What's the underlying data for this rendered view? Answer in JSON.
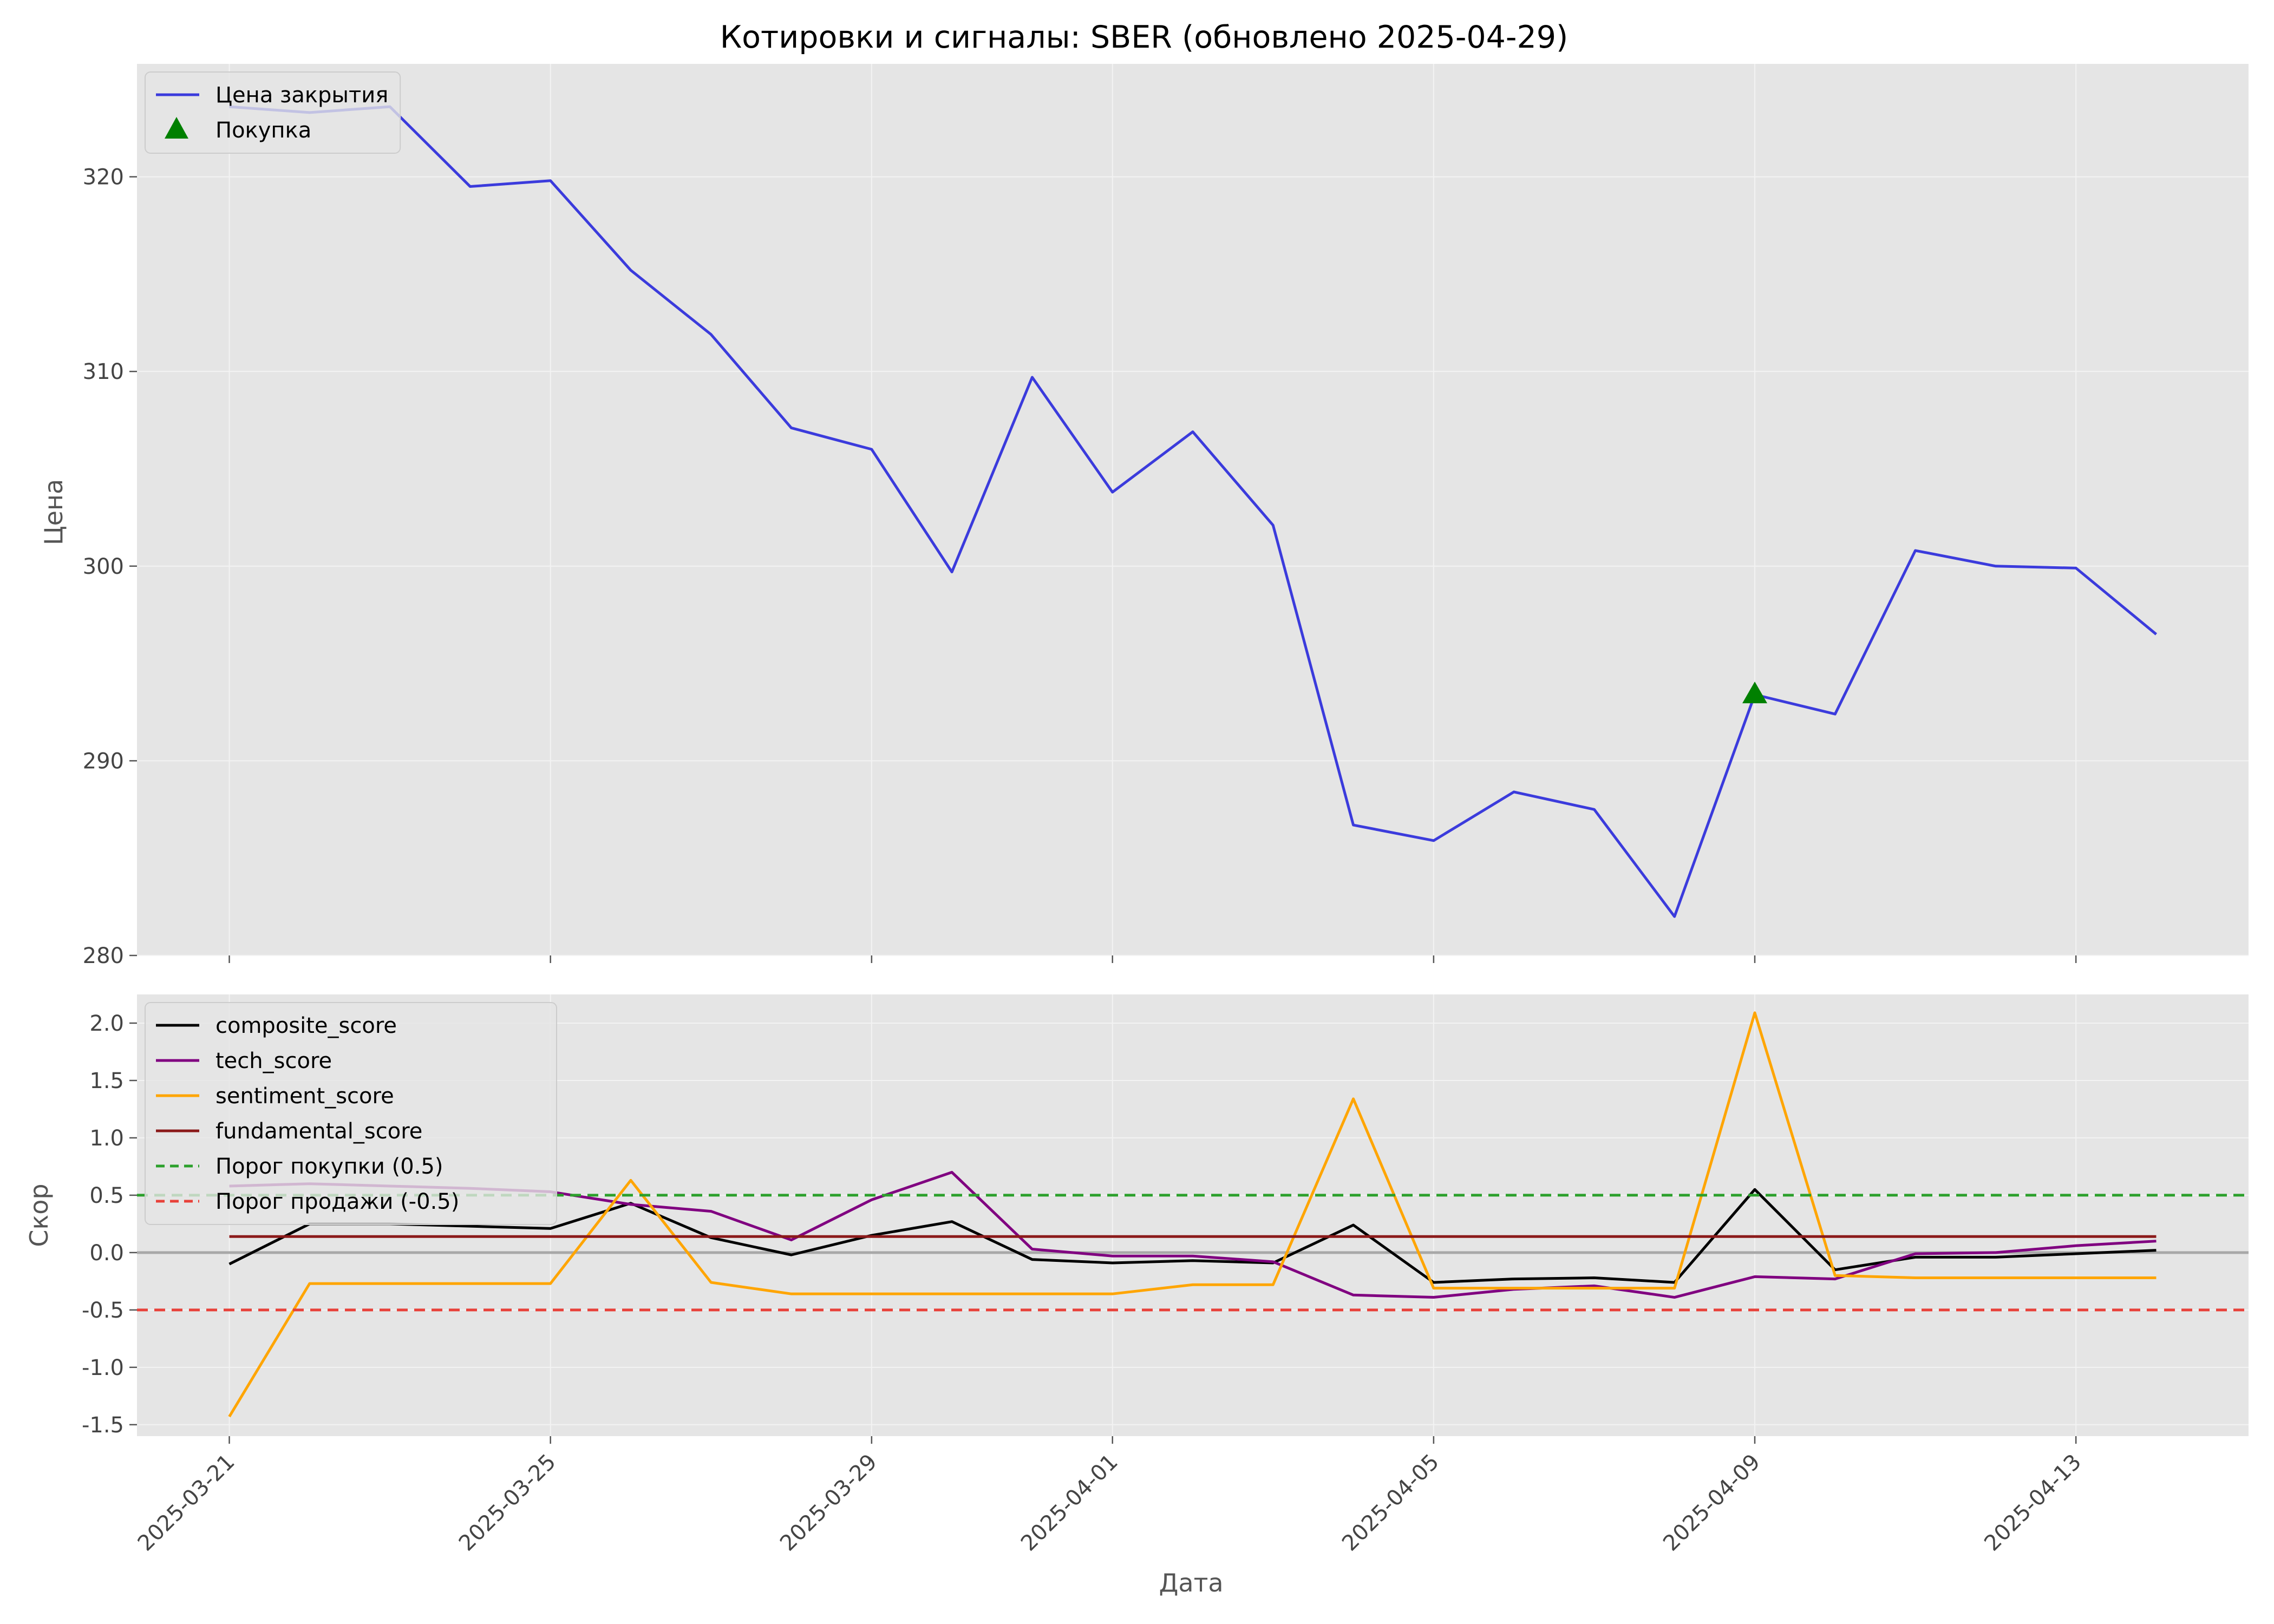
{
  "figure": {
    "title": "Котировки и сигналы: SBER (обновлено 2025-04-29)",
    "xlabel": "Дата"
  },
  "chart_data": [
    {
      "type": "line",
      "ylabel": "Цена",
      "ylim": [
        280,
        325.8
      ],
      "yticks": [
        280,
        290,
        300,
        310,
        320
      ],
      "grid": true,
      "legend_position": "top-left",
      "series": [
        {
          "name": "Цена закрытия",
          "color": "#3b3bdc",
          "x": [
            "2025-03-21",
            "2025-03-22",
            "2025-03-23",
            "2025-03-24",
            "2025-03-25",
            "2025-03-26",
            "2025-03-27",
            "2025-03-28",
            "2025-03-29",
            "2025-03-30",
            "2025-03-31",
            "2025-04-01",
            "2025-04-02",
            "2025-04-03",
            "2025-04-04",
            "2025-04-05",
            "2025-04-06",
            "2025-04-07",
            "2025-04-08",
            "2025-04-09",
            "2025-04-10",
            "2025-04-11",
            "2025-04-12",
            "2025-04-13",
            "2025-04-14"
          ],
          "values": [
            323.6,
            323.3,
            323.6,
            319.5,
            319.8,
            315.2,
            311.9,
            307.1,
            306.0,
            299.7,
            309.7,
            303.8,
            306.9,
            302.1,
            286.7,
            285.9,
            288.4,
            287.5,
            282.0,
            293.4,
            292.4,
            300.8,
            300.0,
            299.9,
            296.5
          ]
        },
        {
          "name": "Покупка",
          "kind": "marker",
          "marker": "triangle",
          "color": "#008000",
          "x": [
            "2025-04-09"
          ],
          "values": [
            293.4
          ]
        }
      ]
    },
    {
      "type": "line",
      "ylabel": "Скор",
      "ylim": [
        -1.6,
        2.25
      ],
      "yticks": [
        -1.5,
        -1.0,
        -0.5,
        0.0,
        0.5,
        1.0,
        1.5,
        2.0
      ],
      "grid": true,
      "legend_position": "top-left",
      "x_dates": [
        "2025-03-21",
        "2025-03-22",
        "2025-03-23",
        "2025-03-24",
        "2025-03-25",
        "2025-03-26",
        "2025-03-27",
        "2025-03-28",
        "2025-03-29",
        "2025-03-30",
        "2025-03-31",
        "2025-04-01",
        "2025-04-02",
        "2025-04-03",
        "2025-04-04",
        "2025-04-05",
        "2025-04-06",
        "2025-04-07",
        "2025-04-08",
        "2025-04-09",
        "2025-04-10",
        "2025-04-11",
        "2025-04-12",
        "2025-04-13",
        "2025-04-14"
      ],
      "xticks": [
        "2025-03-21",
        "2025-03-25",
        "2025-03-29",
        "2025-04-01",
        "2025-04-05",
        "2025-04-09",
        "2025-04-13"
      ],
      "series": [
        {
          "name": "composite_score",
          "color": "#000000",
          "values": [
            -0.1,
            0.25,
            0.25,
            0.23,
            0.21,
            0.43,
            0.13,
            -0.02,
            0.15,
            0.27,
            -0.06,
            -0.09,
            -0.07,
            -0.09,
            0.24,
            -0.26,
            -0.23,
            -0.22,
            -0.26,
            0.55,
            -0.15,
            -0.04,
            -0.04,
            -0.01,
            0.02
          ]
        },
        {
          "name": "tech_score",
          "color": "#800080",
          "values": [
            0.58,
            0.6,
            0.58,
            0.56,
            0.53,
            0.42,
            0.36,
            0.11,
            0.46,
            0.7,
            0.03,
            -0.03,
            -0.03,
            -0.08,
            -0.37,
            -0.39,
            -0.32,
            -0.29,
            -0.39,
            -0.21,
            -0.23,
            -0.01,
            0.0,
            0.06,
            0.1
          ]
        },
        {
          "name": "sentiment_score",
          "color": "#ffa500",
          "values": [
            -1.43,
            -0.27,
            -0.27,
            -0.27,
            -0.27,
            0.63,
            -0.26,
            -0.36,
            -0.36,
            -0.36,
            -0.36,
            -0.36,
            -0.28,
            -0.28,
            1.34,
            -0.31,
            -0.31,
            -0.31,
            -0.31,
            2.09,
            -0.2,
            -0.22,
            -0.22,
            -0.22,
            -0.22
          ]
        },
        {
          "name": "fundamental_score",
          "color": "#8b1a1a",
          "values": [
            0.14,
            0.14,
            0.14,
            0.14,
            0.14,
            0.14,
            0.14,
            0.14,
            0.14,
            0.14,
            0.14,
            0.14,
            0.14,
            0.14,
            0.14,
            0.14,
            0.14,
            0.14,
            0.14,
            0.14,
            0.14,
            0.14,
            0.14,
            0.14,
            0.14
          ]
        },
        {
          "name": "Порог покупки (0.5)",
          "kind": "hline",
          "dashed": true,
          "color": "#2ca02c",
          "value": 0.5
        },
        {
          "name": "Порог продажи (-0.5)",
          "kind": "hline",
          "dashed": true,
          "color": "#e8413a",
          "value": -0.5
        },
        {
          "kind": "baseline",
          "color": "#a8a8a8",
          "value": 0.0
        }
      ]
    }
  ]
}
